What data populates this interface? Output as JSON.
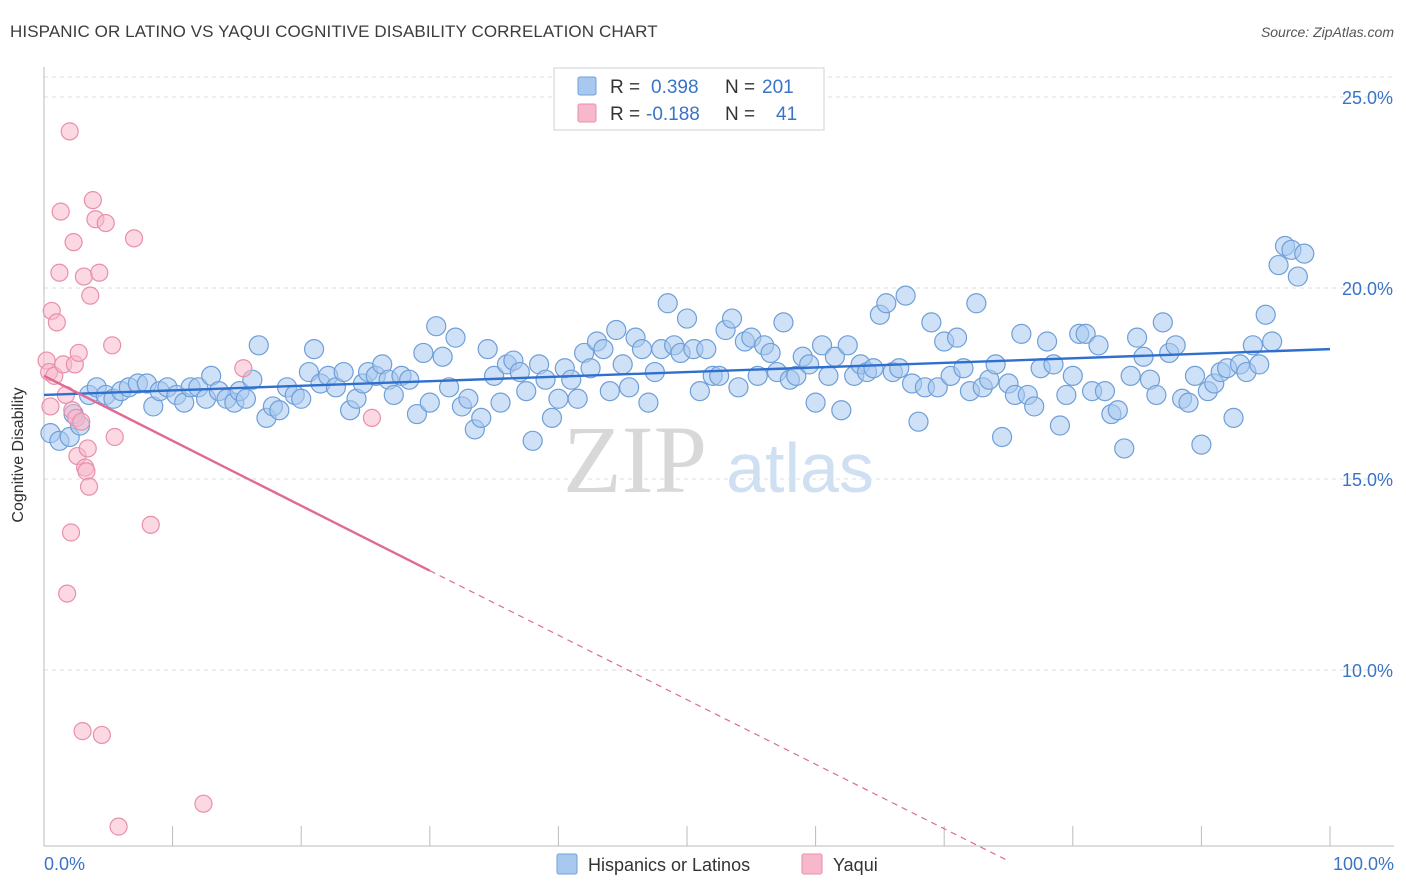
{
  "header": {
    "title": "HISPANIC OR LATINO VS YAQUI COGNITIVE DISABILITY CORRELATION CHART",
    "source": "Source: ZipAtlas.com"
  },
  "watermark": {
    "zip": "ZIP",
    "atlas": "atlas"
  },
  "stats": [
    {
      "r_label": "R =",
      "r_value": "0.398",
      "n_label": "N =",
      "n_value": "201"
    },
    {
      "r_label": "R =",
      "r_value": "-0.188",
      "n_label": "N =",
      "n_value": "41"
    }
  ],
  "legend": [
    {
      "label": "Hispanics or Latinos"
    },
    {
      "label": "Yaqui"
    }
  ],
  "colors": {
    "blue_fill": "#a8c8f0",
    "blue_stroke": "#6f9fd8",
    "blue_line": "#2f6fce",
    "pink_fill": "#f7b8cb",
    "pink_stroke": "#e98fab",
    "pink_line": "#e06a94",
    "tick_text": "#3a74c6",
    "grid": "#dddddd"
  },
  "chart_data": {
    "type": "scatter",
    "title": "HISPANIC OR LATINO VS YAQUI COGNITIVE DISABILITY CORRELATION CHART",
    "xlabel": "",
    "ylabel": "Cognitive Disability",
    "xlim": [
      0,
      100
    ],
    "ylim": [
      5,
      26
    ],
    "x_tick_labels": [
      "0.0%",
      "100.0%"
    ],
    "y_ticks": [
      10,
      15,
      20,
      25
    ],
    "y_tick_labels": [
      "10.0%",
      "15.0%",
      "20.0%",
      "25.0%"
    ],
    "grid": "horizontal dashed",
    "legend_position": "bottom-center",
    "series": [
      {
        "name": "Hispanics or Latinos",
        "color": "#a8c8f0",
        "trend": {
          "x": [
            0,
            100
          ],
          "y": [
            17.2,
            18.4
          ]
        },
        "points": [
          [
            0.5,
            16.2
          ],
          [
            1.2,
            16.0
          ],
          [
            2.0,
            16.1
          ],
          [
            2.8,
            16.4
          ],
          [
            2.3,
            16.7
          ],
          [
            3.5,
            17.2
          ],
          [
            4.1,
            17.4
          ],
          [
            4.8,
            17.2
          ],
          [
            5.4,
            17.1
          ],
          [
            6.0,
            17.3
          ],
          [
            6.6,
            17.4
          ],
          [
            7.3,
            17.5
          ],
          [
            8.0,
            17.5
          ],
          [
            8.5,
            16.9
          ],
          [
            9.0,
            17.3
          ],
          [
            9.6,
            17.4
          ],
          [
            10.3,
            17.2
          ],
          [
            10.9,
            17.0
          ],
          [
            11.4,
            17.4
          ],
          [
            12.0,
            17.4
          ],
          [
            12.6,
            17.1
          ],
          [
            13.0,
            17.7
          ],
          [
            13.6,
            17.3
          ],
          [
            14.2,
            17.1
          ],
          [
            14.8,
            17.0
          ],
          [
            15.2,
            17.3
          ],
          [
            15.7,
            17.1
          ],
          [
            16.2,
            17.6
          ],
          [
            16.7,
            18.5
          ],
          [
            17.3,
            16.6
          ],
          [
            17.8,
            16.9
          ],
          [
            18.3,
            16.8
          ],
          [
            18.9,
            17.4
          ],
          [
            19.5,
            17.2
          ],
          [
            20.0,
            17.1
          ],
          [
            20.6,
            17.8
          ],
          [
            21.0,
            18.4
          ],
          [
            21.5,
            17.5
          ],
          [
            22.1,
            17.7
          ],
          [
            22.7,
            17.4
          ],
          [
            23.3,
            17.8
          ],
          [
            23.8,
            16.8
          ],
          [
            24.3,
            17.1
          ],
          [
            24.8,
            17.5
          ],
          [
            25.2,
            17.8
          ],
          [
            25.8,
            17.7
          ],
          [
            26.3,
            18.0
          ],
          [
            26.8,
            17.6
          ],
          [
            27.2,
            17.2
          ],
          [
            27.8,
            17.7
          ],
          [
            28.4,
            17.6
          ],
          [
            29.0,
            16.7
          ],
          [
            29.5,
            18.3
          ],
          [
            30.0,
            17.0
          ],
          [
            30.5,
            19.0
          ],
          [
            31.0,
            18.2
          ],
          [
            31.5,
            17.4
          ],
          [
            32.0,
            18.7
          ],
          [
            32.5,
            16.9
          ],
          [
            33.0,
            17.1
          ],
          [
            33.5,
            16.3
          ],
          [
            34.0,
            16.6
          ],
          [
            34.5,
            18.4
          ],
          [
            35.0,
            17.7
          ],
          [
            35.5,
            17.0
          ],
          [
            36.0,
            18.0
          ],
          [
            36.5,
            18.1
          ],
          [
            37.0,
            17.8
          ],
          [
            37.5,
            17.3
          ],
          [
            38.0,
            16.0
          ],
          [
            38.5,
            18.0
          ],
          [
            39.0,
            17.6
          ],
          [
            39.5,
            16.6
          ],
          [
            40.0,
            17.1
          ],
          [
            40.5,
            17.9
          ],
          [
            41.0,
            17.6
          ],
          [
            41.5,
            17.1
          ],
          [
            42.0,
            18.3
          ],
          [
            42.5,
            17.9
          ],
          [
            43.0,
            18.6
          ],
          [
            43.5,
            18.4
          ],
          [
            44.0,
            17.3
          ],
          [
            44.5,
            18.9
          ],
          [
            45.0,
            18.0
          ],
          [
            45.5,
            17.4
          ],
          [
            46.0,
            18.7
          ],
          [
            46.5,
            18.4
          ],
          [
            47.0,
            17.0
          ],
          [
            47.5,
            17.8
          ],
          [
            48.0,
            18.4
          ],
          [
            48.5,
            19.6
          ],
          [
            49.0,
            18.5
          ],
          [
            49.5,
            18.3
          ],
          [
            50.0,
            19.2
          ],
          [
            50.5,
            18.4
          ],
          [
            51.0,
            17.3
          ],
          [
            51.5,
            18.4
          ],
          [
            52.0,
            17.7
          ],
          [
            52.5,
            17.7
          ],
          [
            53.0,
            18.9
          ],
          [
            53.5,
            19.2
          ],
          [
            54.0,
            17.4
          ],
          [
            54.5,
            18.6
          ],
          [
            55.0,
            18.7
          ],
          [
            55.5,
            17.7
          ],
          [
            56.0,
            18.5
          ],
          [
            56.5,
            18.3
          ],
          [
            57.0,
            17.8
          ],
          [
            57.5,
            19.1
          ],
          [
            58.0,
            17.6
          ],
          [
            58.5,
            17.7
          ],
          [
            59.0,
            18.2
          ],
          [
            59.5,
            18.0
          ],
          [
            60.0,
            17.0
          ],
          [
            60.5,
            18.5
          ],
          [
            61.0,
            17.7
          ],
          [
            61.5,
            18.2
          ],
          [
            62.0,
            16.8
          ],
          [
            62.5,
            18.5
          ],
          [
            63.0,
            17.7
          ],
          [
            63.5,
            18.0
          ],
          [
            64.0,
            17.8
          ],
          [
            64.5,
            17.9
          ],
          [
            65.0,
            19.3
          ],
          [
            65.5,
            19.6
          ],
          [
            66.0,
            17.8
          ],
          [
            66.5,
            17.9
          ],
          [
            67.0,
            19.8
          ],
          [
            67.5,
            17.5
          ],
          [
            68.0,
            16.5
          ],
          [
            68.5,
            17.4
          ],
          [
            69.0,
            19.1
          ],
          [
            69.5,
            17.4
          ],
          [
            70.0,
            18.6
          ],
          [
            70.5,
            17.7
          ],
          [
            71.0,
            18.7
          ],
          [
            71.5,
            17.9
          ],
          [
            72.0,
            17.3
          ],
          [
            72.5,
            19.6
          ],
          [
            73.0,
            17.4
          ],
          [
            73.5,
            17.6
          ],
          [
            74.0,
            18.0
          ],
          [
            74.5,
            16.1
          ],
          [
            75.0,
            17.5
          ],
          [
            75.5,
            17.2
          ],
          [
            76.0,
            18.8
          ],
          [
            76.5,
            17.2
          ],
          [
            77.0,
            16.9
          ],
          [
            77.5,
            17.9
          ],
          [
            78.0,
            18.6
          ],
          [
            78.5,
            18.0
          ],
          [
            79.0,
            16.4
          ],
          [
            79.5,
            17.2
          ],
          [
            80.0,
            17.7
          ],
          [
            80.5,
            18.8
          ],
          [
            81.0,
            18.8
          ],
          [
            81.5,
            17.3
          ],
          [
            82.0,
            18.5
          ],
          [
            82.5,
            17.3
          ],
          [
            83.0,
            16.7
          ],
          [
            83.5,
            16.8
          ],
          [
            84.0,
            15.8
          ],
          [
            84.5,
            17.7
          ],
          [
            85.0,
            18.7
          ],
          [
            85.5,
            18.2
          ],
          [
            86.0,
            17.6
          ],
          [
            86.5,
            17.2
          ],
          [
            87.0,
            19.1
          ],
          [
            87.5,
            18.3
          ],
          [
            88.0,
            18.5
          ],
          [
            88.5,
            17.1
          ],
          [
            89.0,
            17.0
          ],
          [
            89.5,
            17.7
          ],
          [
            90.0,
            15.9
          ],
          [
            90.5,
            17.3
          ],
          [
            91.0,
            17.5
          ],
          [
            91.5,
            17.8
          ],
          [
            92.0,
            17.9
          ],
          [
            92.5,
            16.6
          ],
          [
            93.0,
            18.0
          ],
          [
            93.5,
            17.8
          ],
          [
            94.0,
            18.5
          ],
          [
            94.5,
            18.0
          ],
          [
            95.0,
            19.3
          ],
          [
            95.5,
            18.6
          ],
          [
            96.0,
            20.6
          ],
          [
            96.5,
            21.1
          ],
          [
            97.0,
            21.0
          ],
          [
            97.5,
            20.3
          ],
          [
            98.0,
            20.9
          ]
        ]
      },
      {
        "name": "Yaqui",
        "color": "#f7b8cb",
        "trend": {
          "x": [
            0,
            30
          ],
          "y": [
            17.7,
            12.6
          ],
          "extended": {
            "x": [
              30,
              75
            ],
            "y": [
              12.6,
              5.0
            ]
          }
        },
        "points": [
          [
            0.2,
            18.1
          ],
          [
            0.4,
            17.8
          ],
          [
            0.5,
            16.9
          ],
          [
            0.6,
            19.4
          ],
          [
            0.8,
            17.7
          ],
          [
            1.0,
            19.1
          ],
          [
            1.2,
            20.4
          ],
          [
            1.3,
            22.0
          ],
          [
            1.5,
            18.0
          ],
          [
            1.7,
            17.2
          ],
          [
            1.8,
            12.0
          ],
          [
            2.0,
            24.1
          ],
          [
            2.1,
            13.6
          ],
          [
            2.2,
            16.8
          ],
          [
            2.3,
            21.2
          ],
          [
            2.4,
            18.0
          ],
          [
            2.5,
            16.6
          ],
          [
            2.6,
            15.6
          ],
          [
            2.7,
            18.3
          ],
          [
            2.9,
            16.5
          ],
          [
            3.0,
            8.4
          ],
          [
            3.1,
            20.3
          ],
          [
            3.2,
            15.3
          ],
          [
            3.3,
            15.2
          ],
          [
            3.4,
            15.8
          ],
          [
            3.5,
            14.8
          ],
          [
            3.6,
            19.8
          ],
          [
            3.8,
            22.3
          ],
          [
            4.0,
            21.8
          ],
          [
            4.3,
            20.4
          ],
          [
            4.5,
            8.3
          ],
          [
            4.8,
            21.7
          ],
          [
            5.3,
            18.5
          ],
          [
            5.5,
            16.1
          ],
          [
            5.8,
            5.9
          ],
          [
            7.0,
            21.3
          ],
          [
            8.3,
            13.8
          ],
          [
            12.4,
            6.5
          ],
          [
            15.5,
            17.9
          ],
          [
            25.5,
            16.6
          ]
        ]
      }
    ]
  }
}
